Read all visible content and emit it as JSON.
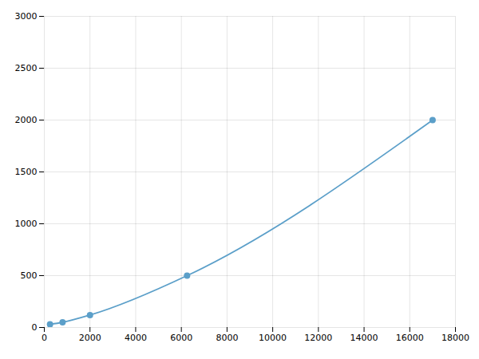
{
  "chart_data": {
    "type": "line",
    "x": [
      250,
      800,
      2000,
      6250,
      17000
    ],
    "values": [
      30,
      50,
      120,
      500,
      2000
    ],
    "color": "#5b9fc9",
    "marker": "circle",
    "xlim": [
      0,
      18000
    ],
    "ylim": [
      0,
      3000
    ],
    "xticks": [
      0,
      2000,
      4000,
      6000,
      8000,
      10000,
      12000,
      14000,
      16000,
      18000
    ],
    "yticks": [
      0,
      500,
      1000,
      1500,
      2000,
      2500,
      3000
    ],
    "grid": true
  }
}
